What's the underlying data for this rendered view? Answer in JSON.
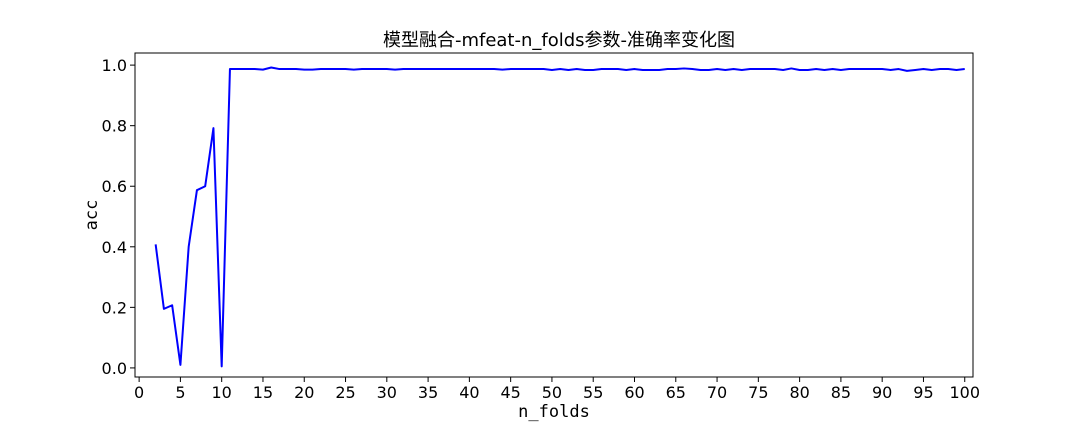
{
  "chart_data": {
    "type": "line",
    "title": "模型融合-mfeat-n_folds参数-准确率变化图",
    "xlabel": "n_folds",
    "ylabel": "acc",
    "xlim": [
      -0.5,
      101
    ],
    "ylim": [
      -0.03,
      1.04
    ],
    "x_ticks": [
      0,
      5,
      10,
      15,
      20,
      25,
      30,
      35,
      40,
      45,
      50,
      55,
      60,
      65,
      70,
      75,
      80,
      85,
      90,
      95,
      100
    ],
    "y_ticks": [
      0.0,
      0.2,
      0.4,
      0.6,
      0.8,
      1.0
    ],
    "y_tick_labels": [
      "0.0",
      "0.2",
      "0.4",
      "0.6",
      "0.8",
      "1.0"
    ],
    "grid": false,
    "series": [
      {
        "color": "#0000ff",
        "x": [
          2,
          3,
          4,
          5,
          6,
          7,
          8,
          9,
          10,
          11,
          12,
          13,
          14,
          15,
          16,
          17,
          18,
          19,
          20,
          21,
          22,
          23,
          24,
          25,
          26,
          27,
          28,
          29,
          30,
          31,
          32,
          33,
          34,
          35,
          36,
          37,
          38,
          39,
          40,
          41,
          42,
          43,
          44,
          45,
          46,
          47,
          48,
          49,
          50,
          51,
          52,
          53,
          54,
          55,
          56,
          57,
          58,
          59,
          60,
          61,
          62,
          63,
          64,
          65,
          66,
          67,
          68,
          69,
          70,
          71,
          72,
          73,
          74,
          75,
          76,
          77,
          78,
          79,
          80,
          81,
          82,
          83,
          84,
          85,
          86,
          87,
          88,
          89,
          90,
          91,
          92,
          93,
          94,
          95,
          96,
          97,
          98,
          99,
          100
        ],
        "values": [
          0.408,
          0.195,
          0.207,
          0.01,
          0.4,
          0.587,
          0.6,
          0.792,
          0.005,
          0.987,
          0.987,
          0.987,
          0.987,
          0.985,
          0.992,
          0.987,
          0.987,
          0.987,
          0.985,
          0.985,
          0.987,
          0.987,
          0.987,
          0.987,
          0.985,
          0.987,
          0.987,
          0.987,
          0.987,
          0.985,
          0.987,
          0.987,
          0.987,
          0.987,
          0.987,
          0.987,
          0.987,
          0.987,
          0.987,
          0.987,
          0.987,
          0.987,
          0.985,
          0.987,
          0.987,
          0.987,
          0.987,
          0.987,
          0.984,
          0.987,
          0.984,
          0.987,
          0.984,
          0.984,
          0.987,
          0.987,
          0.987,
          0.984,
          0.987,
          0.984,
          0.984,
          0.984,
          0.987,
          0.987,
          0.989,
          0.987,
          0.984,
          0.984,
          0.987,
          0.984,
          0.987,
          0.984,
          0.987,
          0.987,
          0.987,
          0.987,
          0.984,
          0.989,
          0.984,
          0.984,
          0.987,
          0.984,
          0.987,
          0.984,
          0.987,
          0.987,
          0.987,
          0.987,
          0.987,
          0.984,
          0.987,
          0.981,
          0.984,
          0.987,
          0.984,
          0.987,
          0.987,
          0.984,
          0.987
        ]
      }
    ]
  }
}
